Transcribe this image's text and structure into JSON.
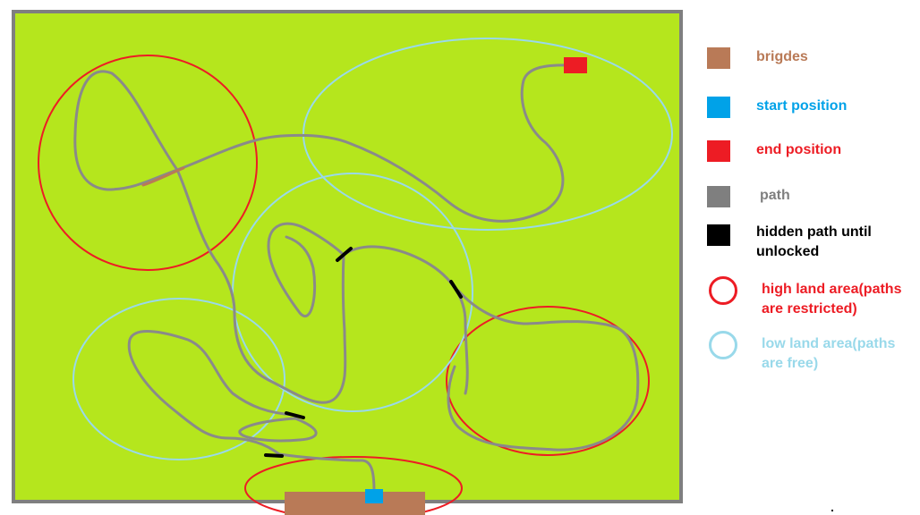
{
  "colors": {
    "grass": "#b5e61d",
    "grass_speckle": "#22b14c",
    "border": "#7f7f7f",
    "path": "#8a8a8a",
    "bridge": "#b97a57",
    "start": "#00a2e8",
    "end": "#ed1c24",
    "hidden_path": "#000000",
    "high_land": "#ed1c24",
    "low_land": "#99d9ea"
  },
  "legend": [
    {
      "key": "bridges",
      "label": "brigdes",
      "color": "#b97a57",
      "text_color": "#b97a57",
      "icon": "bridge-swatch"
    },
    {
      "key": "start",
      "label": "start position",
      "color": "#00a2e8",
      "text_color": "#00a2e8",
      "icon": "start-swatch"
    },
    {
      "key": "end",
      "label": "end position",
      "color": "#ed1c24",
      "text_color": "#ed1c24",
      "icon": "end-swatch"
    },
    {
      "key": "path",
      "label": "path",
      "color": "#7f7f7f",
      "text_color": "#7f7f7f",
      "icon": "path-swatch"
    },
    {
      "key": "hidden",
      "label": "hidden path until unlocked",
      "color": "#000000",
      "text_color": "#000000",
      "icon": "hidden-path-swatch"
    },
    {
      "key": "high",
      "label": "high land area(paths are restricted)",
      "color": "#ed1c24",
      "text_color": "#ed1c24",
      "icon": "high-land-ring-icon"
    },
    {
      "key": "low",
      "label": "low land area(paths are free)",
      "color": "#99d9ea",
      "text_color": "#99d9ea",
      "icon": "low-land-ring-icon"
    }
  ]
}
